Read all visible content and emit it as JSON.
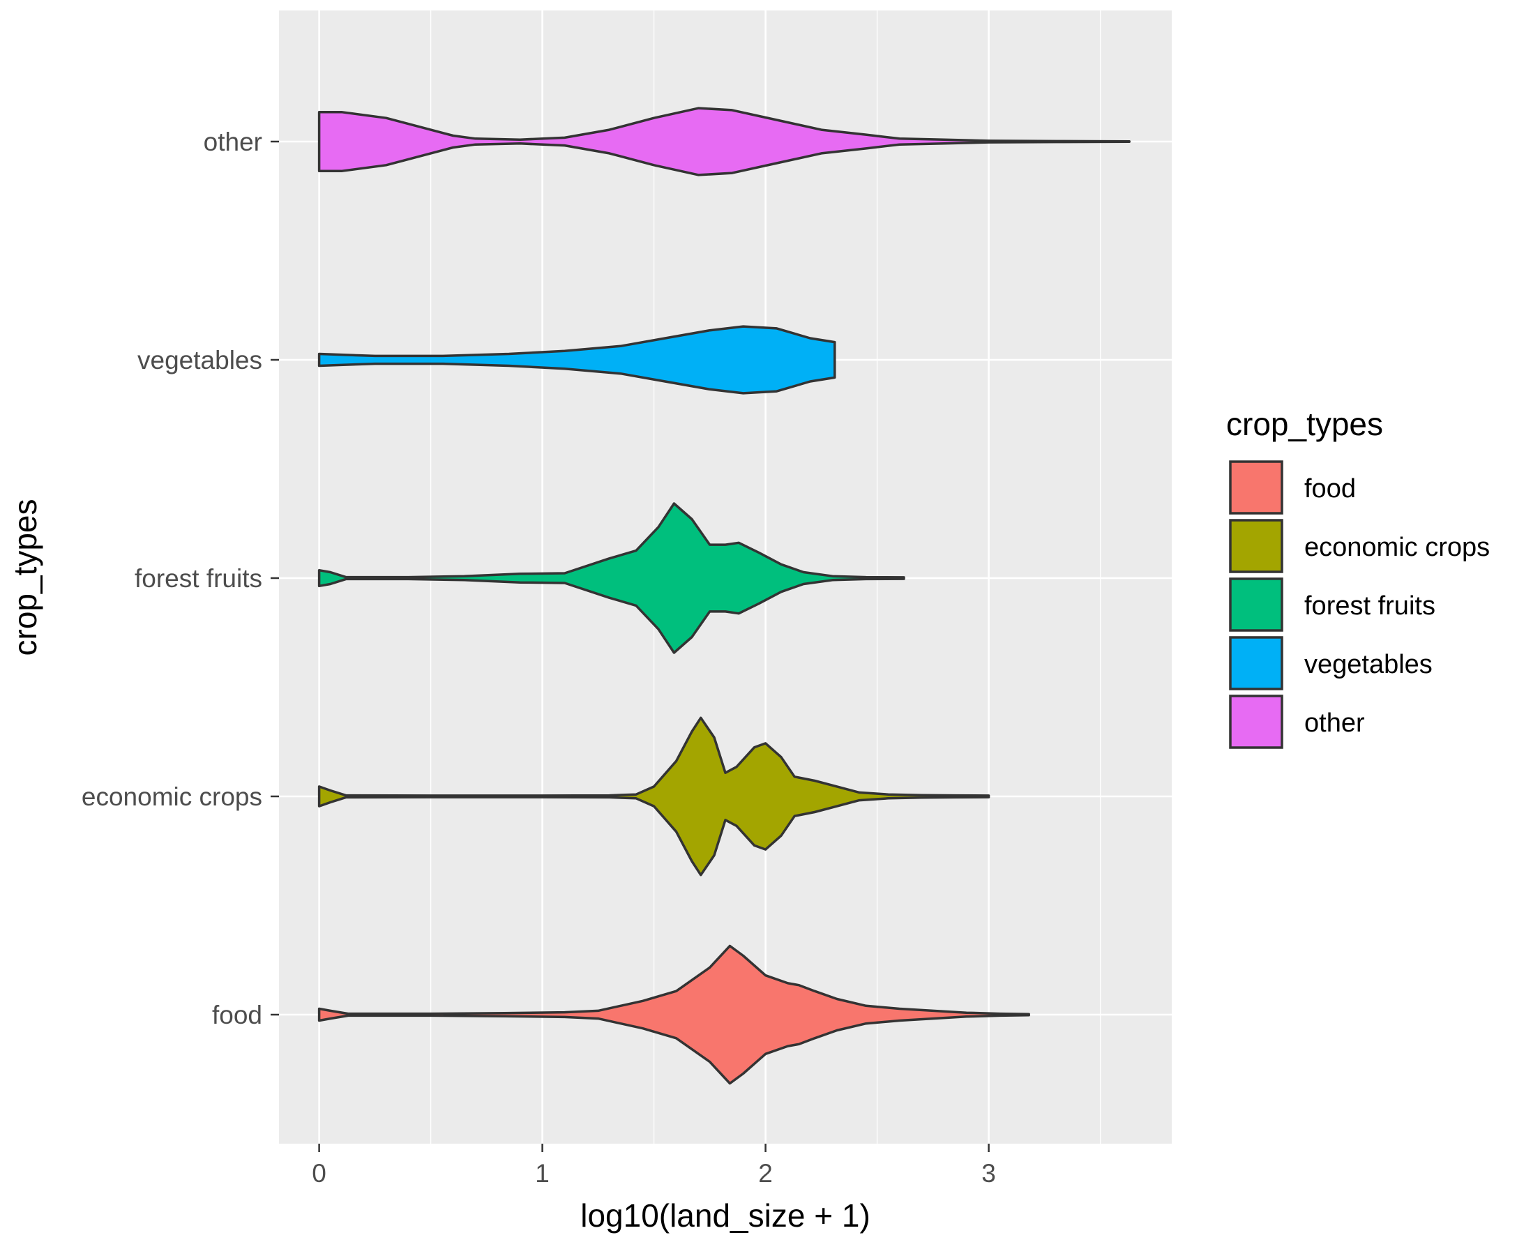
{
  "chart_data": {
    "type": "violin",
    "orientation": "horizontal",
    "title": "",
    "xlabel": "log10(land_size + 1)",
    "ylabel": "crop_types",
    "xlim": [
      -0.18,
      3.82
    ],
    "x_ticks": [
      0,
      1,
      2,
      3
    ],
    "x_tick_labels": [
      "0",
      "1",
      "2",
      "3"
    ],
    "categories": [
      "food",
      "economic crops",
      "forest fruits",
      "vegetables",
      "other"
    ],
    "grid": true,
    "legend": {
      "title": "crop_types",
      "position": "right",
      "items": [
        {
          "label": "food",
          "color": "#F8766D"
        },
        {
          "label": "economic crops",
          "color": "#A3A500"
        },
        {
          "label": "forest fruits",
          "color": "#00BF7D"
        },
        {
          "label": "vegetables",
          "color": "#00B0F6"
        },
        {
          "label": "other",
          "color": "#E76BF3"
        }
      ]
    },
    "max_half_width": 0.4,
    "series": [
      {
        "name": "food",
        "color": "#F8766D",
        "range": [
          0,
          3.18
        ],
        "profile": [
          [
            0,
            0.03
          ],
          [
            0.05,
            0.02
          ],
          [
            0.13,
            0.005
          ],
          [
            0.5,
            0.005
          ],
          [
            0.83,
            0.008
          ],
          [
            1.1,
            0.012
          ],
          [
            1.25,
            0.02
          ],
          [
            1.45,
            0.07
          ],
          [
            1.6,
            0.12
          ],
          [
            1.75,
            0.24
          ],
          [
            1.84,
            0.35
          ],
          [
            1.9,
            0.3
          ],
          [
            2.0,
            0.2
          ],
          [
            2.1,
            0.16
          ],
          [
            2.15,
            0.15
          ],
          [
            2.22,
            0.12
          ],
          [
            2.32,
            0.08
          ],
          [
            2.45,
            0.045
          ],
          [
            2.6,
            0.03
          ],
          [
            2.75,
            0.02
          ],
          [
            2.9,
            0.01
          ],
          [
            3.05,
            0.005
          ],
          [
            3.18,
            0.003
          ]
        ]
      },
      {
        "name": "economic crops",
        "color": "#A3A500",
        "range": [
          0,
          3.0
        ],
        "profile": [
          [
            0,
            0.05
          ],
          [
            0.05,
            0.03
          ],
          [
            0.12,
            0.005
          ],
          [
            0.5,
            0.004
          ],
          [
            1.0,
            0.004
          ],
          [
            1.3,
            0.005
          ],
          [
            1.42,
            0.01
          ],
          [
            1.5,
            0.05
          ],
          [
            1.6,
            0.18
          ],
          [
            1.67,
            0.33
          ],
          [
            1.71,
            0.4
          ],
          [
            1.77,
            0.3
          ],
          [
            1.82,
            0.12
          ],
          [
            1.87,
            0.15
          ],
          [
            1.95,
            0.25
          ],
          [
            2.0,
            0.27
          ],
          [
            2.07,
            0.2
          ],
          [
            2.13,
            0.1
          ],
          [
            2.22,
            0.08
          ],
          [
            2.32,
            0.05
          ],
          [
            2.42,
            0.02
          ],
          [
            2.55,
            0.01
          ],
          [
            2.7,
            0.006
          ],
          [
            2.85,
            0.005
          ],
          [
            3.0,
            0.004
          ]
        ]
      },
      {
        "name": "forest fruits",
        "color": "#00BF7D",
        "range": [
          0,
          2.62
        ],
        "profile": [
          [
            0,
            0.04
          ],
          [
            0.05,
            0.03
          ],
          [
            0.12,
            0.005
          ],
          [
            0.4,
            0.005
          ],
          [
            0.65,
            0.01
          ],
          [
            0.9,
            0.022
          ],
          [
            1.1,
            0.025
          ],
          [
            1.3,
            0.1
          ],
          [
            1.42,
            0.14
          ],
          [
            1.52,
            0.26
          ],
          [
            1.59,
            0.38
          ],
          [
            1.67,
            0.3
          ],
          [
            1.75,
            0.17
          ],
          [
            1.82,
            0.17
          ],
          [
            1.88,
            0.18
          ],
          [
            1.97,
            0.13
          ],
          [
            2.07,
            0.07
          ],
          [
            2.17,
            0.03
          ],
          [
            2.3,
            0.01
          ],
          [
            2.45,
            0.005
          ],
          [
            2.62,
            0.004
          ]
        ]
      },
      {
        "name": "vegetables",
        "color": "#00B0F6",
        "range": [
          0,
          2.31
        ],
        "profile": [
          [
            0,
            0.03
          ],
          [
            0.25,
            0.02
          ],
          [
            0.55,
            0.02
          ],
          [
            0.85,
            0.03
          ],
          [
            1.1,
            0.045
          ],
          [
            1.35,
            0.07
          ],
          [
            1.55,
            0.11
          ],
          [
            1.75,
            0.15
          ],
          [
            1.9,
            0.17
          ],
          [
            2.05,
            0.16
          ],
          [
            2.2,
            0.11
          ],
          [
            2.31,
            0.09
          ]
        ]
      },
      {
        "name": "other",
        "color": "#E76BF3",
        "range": [
          0,
          3.63
        ],
        "profile": [
          [
            0,
            0.15
          ],
          [
            0.1,
            0.15
          ],
          [
            0.3,
            0.12
          ],
          [
            0.5,
            0.06
          ],
          [
            0.6,
            0.03
          ],
          [
            0.7,
            0.015
          ],
          [
            0.9,
            0.01
          ],
          [
            1.1,
            0.02
          ],
          [
            1.3,
            0.06
          ],
          [
            1.5,
            0.12
          ],
          [
            1.7,
            0.17
          ],
          [
            1.85,
            0.16
          ],
          [
            2.05,
            0.11
          ],
          [
            2.25,
            0.06
          ],
          [
            2.45,
            0.035
          ],
          [
            2.6,
            0.015
          ],
          [
            2.8,
            0.01
          ],
          [
            3.0,
            0.004
          ],
          [
            3.3,
            0.002
          ],
          [
            3.63,
            0.001
          ]
        ]
      }
    ]
  }
}
